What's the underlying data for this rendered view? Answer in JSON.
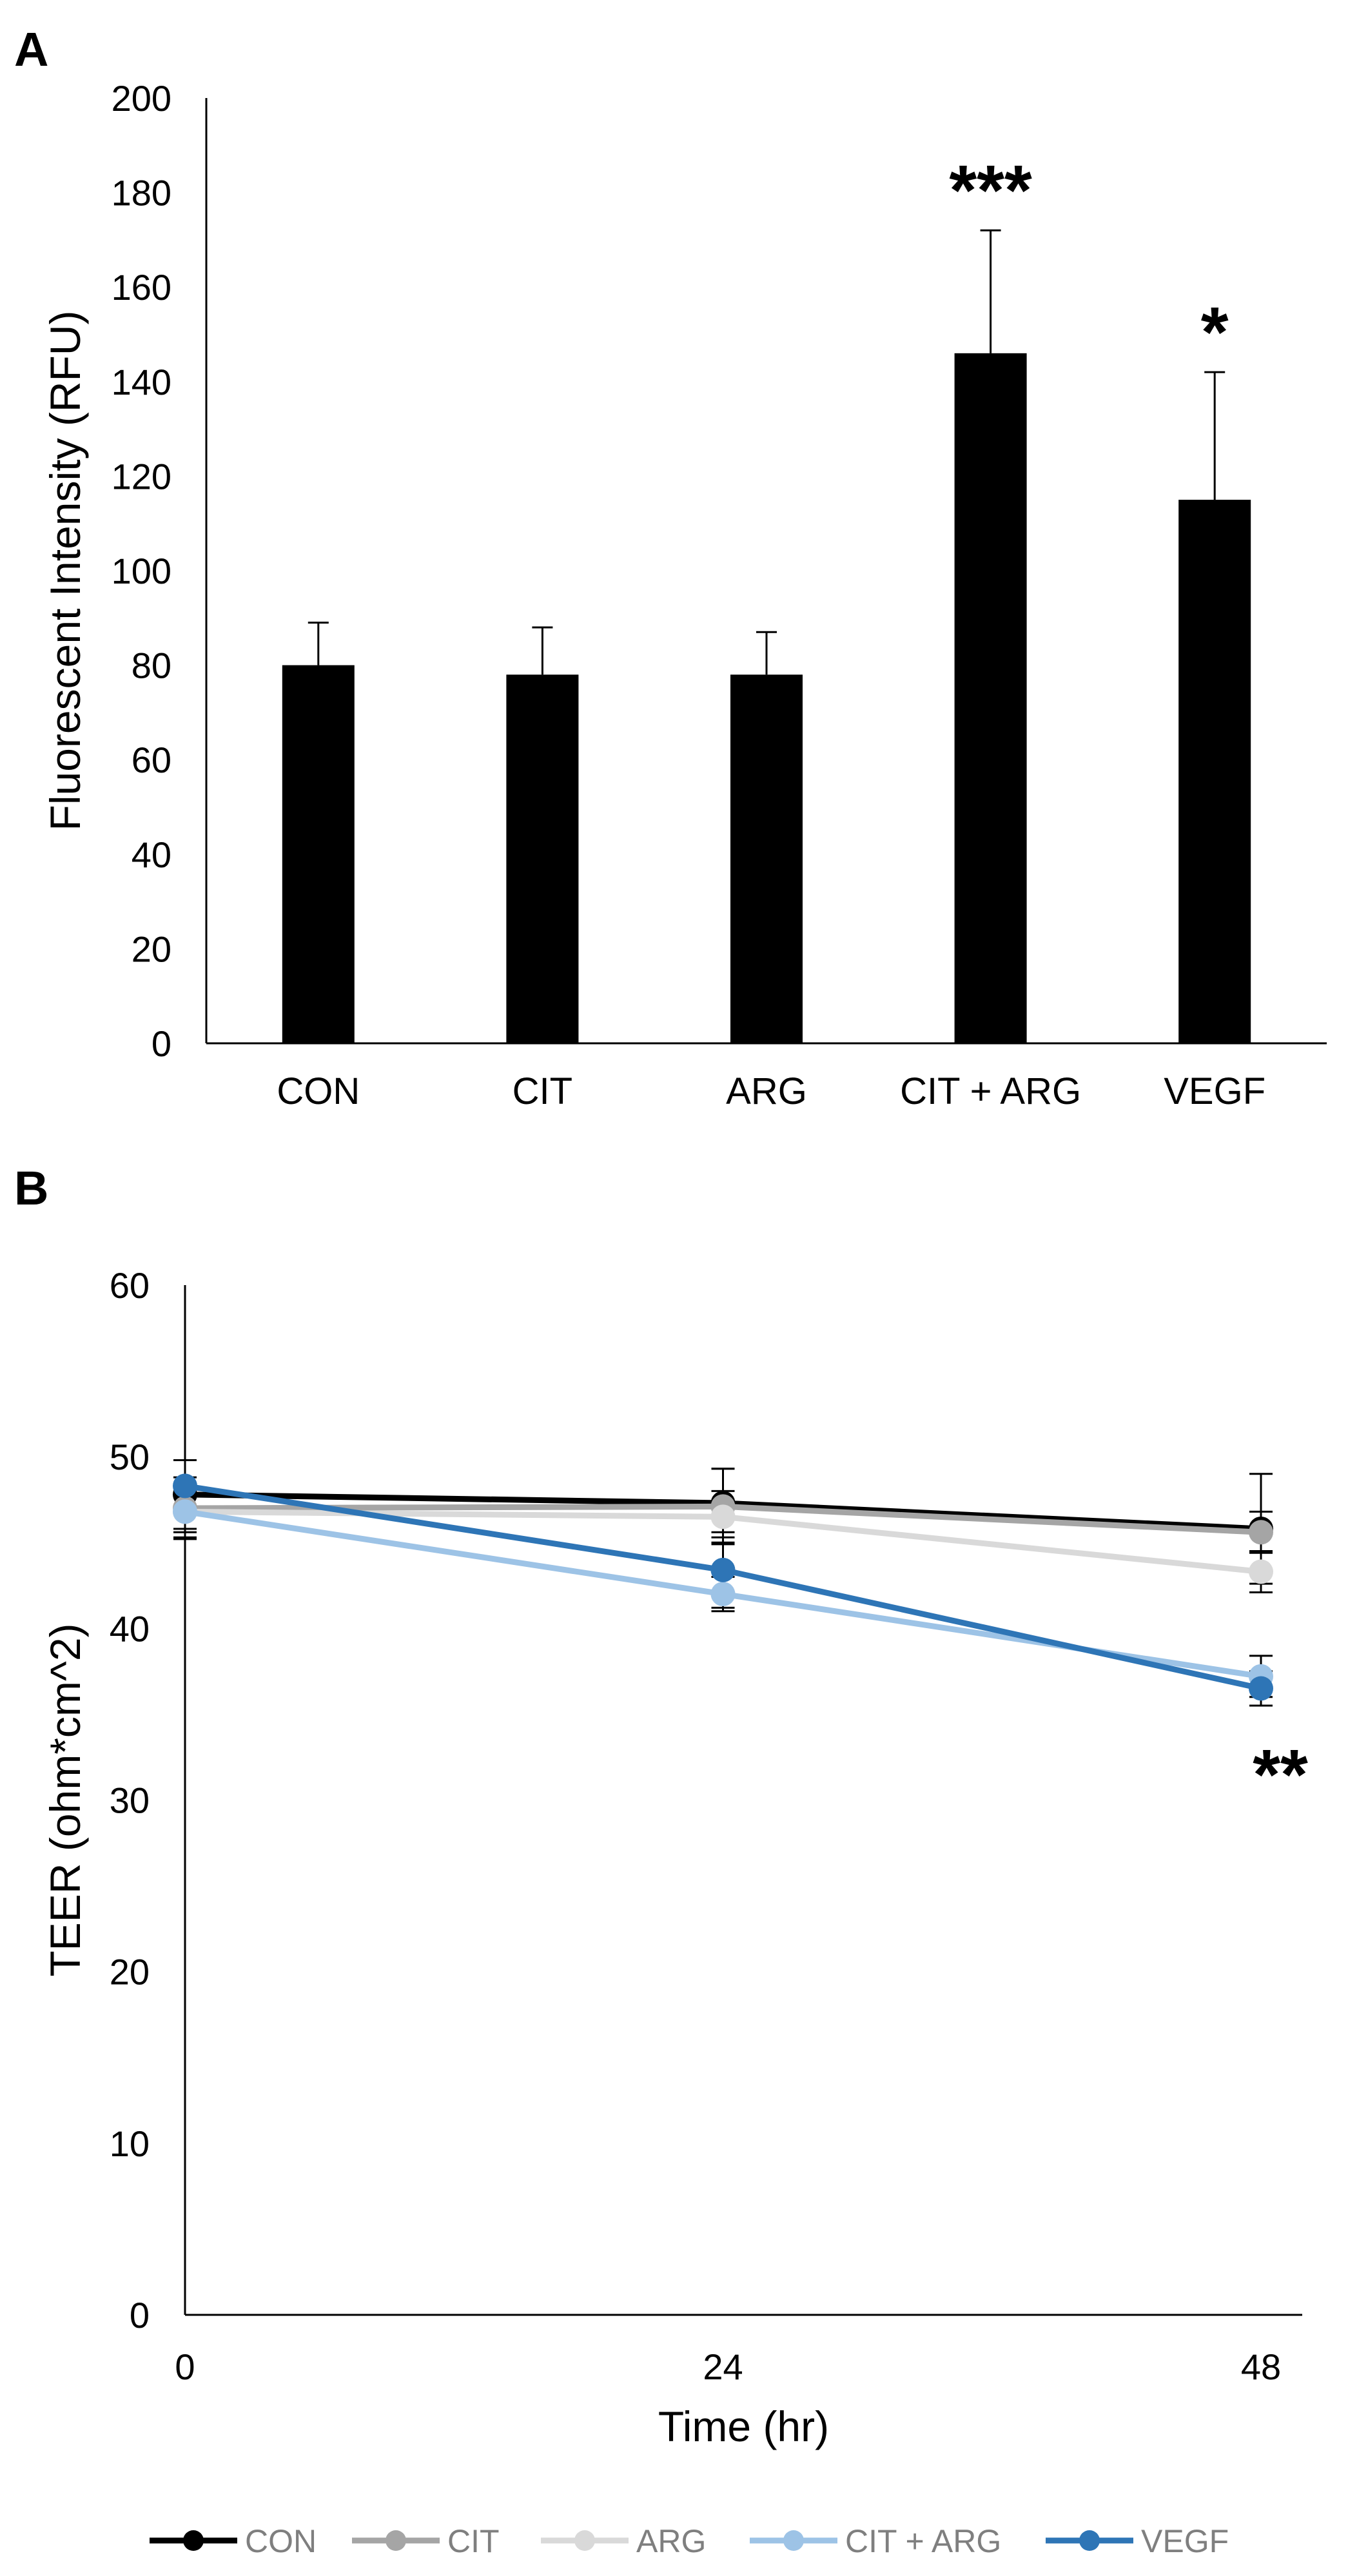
{
  "chart_data": [
    {
      "panel_label": "A",
      "type": "bar",
      "ylabel": "Fluorescent Intensity (RFU)",
      "xlabel": "",
      "ylim": [
        0,
        200
      ],
      "yticks": [
        "0",
        "20",
        "40",
        "60",
        "80",
        "100",
        "120",
        "140",
        "160",
        "180",
        "200"
      ],
      "categories": [
        "CON",
        "CIT",
        "ARG",
        "CIT + ARG",
        "VEGF"
      ],
      "values": [
        80,
        78,
        78,
        146,
        115
      ],
      "error_upper": [
        9,
        10,
        9,
        26,
        27
      ],
      "significance": [
        "",
        "",
        "",
        "***",
        "*"
      ],
      "bar_color": "#000000",
      "grid": false
    },
    {
      "panel_label": "B",
      "type": "line",
      "ylabel": "TEER (ohm*cm^2)",
      "xlabel": "Time (hr)",
      "ylim": [
        0,
        60
      ],
      "yticks": [
        "0",
        "10",
        "20",
        "30",
        "40",
        "50",
        "60"
      ],
      "x": [
        0,
        24,
        48
      ],
      "xticks": [
        "0",
        "24",
        "48"
      ],
      "legend_position": "bottom",
      "grid": false,
      "series": [
        {
          "name": "CON",
          "color": "#000000",
          "values": [
            47.8,
            47.3,
            45.8
          ],
          "error": [
            2,
            2,
            3.2
          ]
        },
        {
          "name": "CIT",
          "color": "#a5a5a5",
          "values": [
            47.0,
            47.1,
            45.6
          ],
          "error": [
            1.8,
            2.2,
            1.2
          ]
        },
        {
          "name": "ARG",
          "color": "#d9d9d9",
          "values": [
            46.8,
            46.5,
            43.3
          ],
          "error": [
            1.5,
            1.5,
            1.2
          ]
        },
        {
          "name": "CIT + ARG",
          "color": "#9dc3e6",
          "values": [
            46.8,
            42.0,
            37.2
          ],
          "error": [
            1.2,
            1,
            1.2
          ]
        },
        {
          "name": "VEGF",
          "color": "#2e75b6",
          "values": [
            48.3,
            43.4,
            36.5
          ],
          "error": [
            1.5,
            2.2,
            1
          ]
        }
      ],
      "annotations": [
        {
          "text": "**",
          "x": 48
        }
      ]
    }
  ]
}
